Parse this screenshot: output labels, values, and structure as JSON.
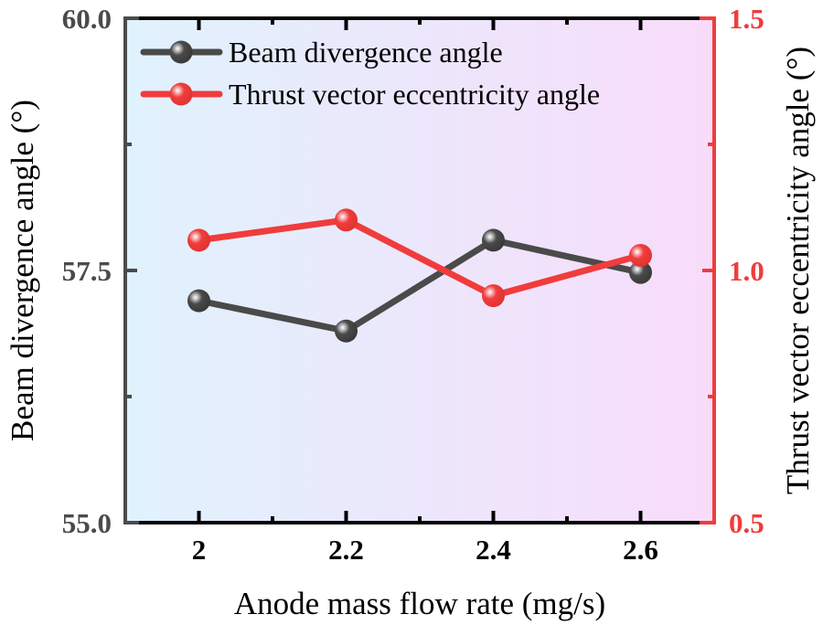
{
  "chart_data": {
    "type": "line",
    "title": "",
    "xlabel": "Anode mass flow rate (mg/s)",
    "ylabel": "Beam divergence angle (°)",
    "y2label": "Thrust vector eccentricity angle (°)",
    "x": [
      2.0,
      2.2,
      2.4,
      2.6
    ],
    "xlim": [
      1.9,
      2.7
    ],
    "xticks": [
      2.0,
      2.2,
      2.4,
      2.6
    ],
    "xtick_labels": [
      "2",
      "2.2",
      "2.4",
      "2.6"
    ],
    "ylim": [
      55.0,
      60.0
    ],
    "yticks": [
      55.0,
      57.5,
      60.0
    ],
    "ytick_labels": [
      "55.0",
      "57.5",
      "60.0"
    ],
    "y2lim": [
      0.5,
      1.5
    ],
    "y2ticks": [
      0.5,
      1.0,
      1.5
    ],
    "y2tick_labels": [
      "0.5",
      "1.0",
      "1.5"
    ],
    "grid": false,
    "legend_position": "top-left",
    "series": [
      {
        "name": "Beam divergence angle",
        "axis": "left",
        "color": "#4a4a4a",
        "values": [
          57.2,
          56.9,
          57.8,
          57.48
        ]
      },
      {
        "name": "Thrust vector eccentricity angle",
        "axis": "right",
        "color": "#f03c3c",
        "values": [
          1.06,
          1.1,
          0.95,
          1.03
        ]
      }
    ],
    "background_gradient": [
      "#e0f2fd",
      "#f8dcfa"
    ],
    "left_axis_color": "#4b4b4b",
    "right_axis_color": "#f03c3c"
  }
}
